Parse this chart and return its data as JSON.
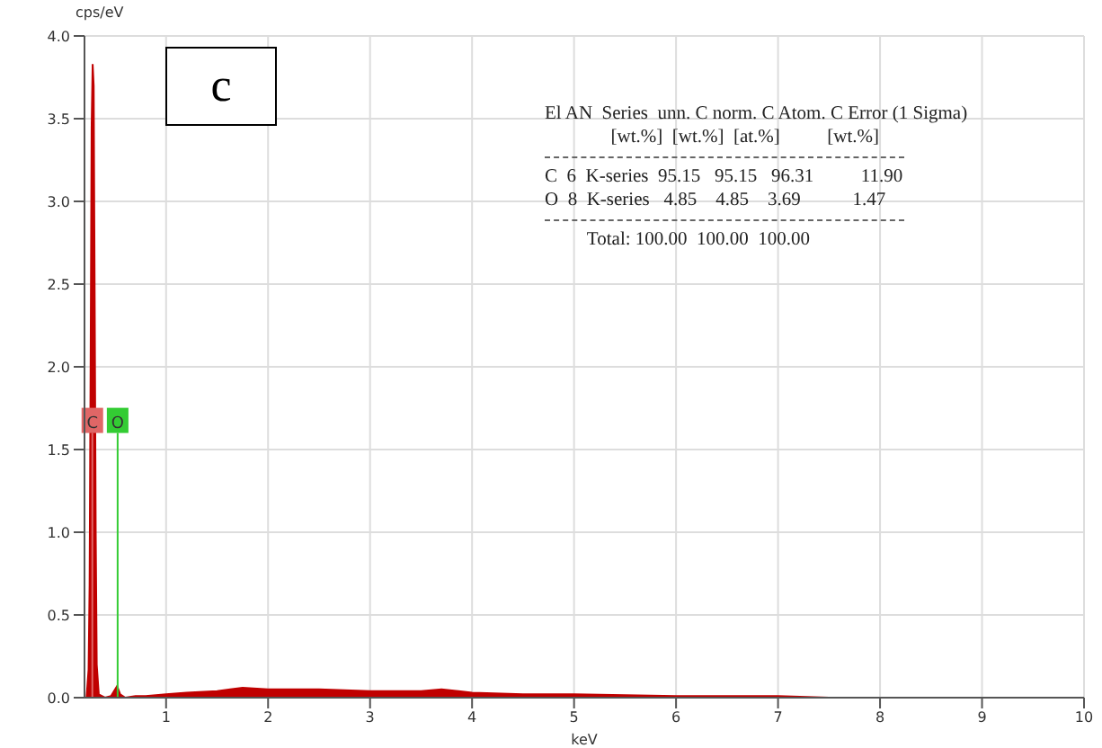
{
  "chart_data": {
    "type": "area",
    "xlabel": "keV",
    "ylabel": "cps/eV",
    "x": [
      0.22,
      0.24,
      0.25,
      0.26,
      0.27,
      0.28,
      0.29,
      0.3,
      0.31,
      0.32,
      0.34,
      0.4,
      0.46,
      0.5,
      0.52,
      0.55,
      0.6,
      0.7,
      0.8,
      1.0,
      1.2,
      1.5,
      1.75,
      2.0,
      2.25,
      2.5,
      3.0,
      3.5,
      3.7,
      4.0,
      4.5,
      5.0,
      6.0,
      7.0,
      7.5,
      10
    ],
    "series": [
      {
        "color": "#c00000",
        "values": [
          0,
          0.17,
          0.68,
          2.0,
          3.45,
          3.83,
          3.7,
          2.4,
          1.0,
          0.2,
          0.02,
          0,
          0.01,
          0.05,
          0.07,
          0.02,
          0,
          0.01,
          0.01,
          0.02,
          0.03,
          0.04,
          0.06,
          0.05,
          0.05,
          0.05,
          0.04,
          0.04,
          0.05,
          0.03,
          0.02,
          0.02,
          0.01,
          0.01,
          0,
          0
        ]
      }
    ],
    "xlim": [
      0.2,
      10
    ],
    "xticks": [
      1,
      2,
      3,
      4,
      5,
      6,
      7,
      8,
      9,
      10
    ],
    "ylim": [
      0,
      4
    ],
    "yticks": [
      {
        "value": 0,
        "label": "0.0"
      },
      {
        "value": 0.5,
        "label": "0.5"
      },
      {
        "value": 1,
        "label": "1.0"
      },
      {
        "value": 1.5,
        "label": "1.5"
      },
      {
        "value": 2,
        "label": "2.0"
      },
      {
        "value": 2.5,
        "label": "2.5"
      },
      {
        "value": 3,
        "label": "3.0"
      },
      {
        "value": 3.5,
        "label": "3.5"
      },
      {
        "value": 4,
        "label": "4.0"
      }
    ],
    "grid": true,
    "ref_lines": [
      {
        "axis": "x",
        "value": 0.277,
        "label": "C",
        "color": "#e06666"
      },
      {
        "axis": "x",
        "value": 0.525,
        "label": "O",
        "color": "#33cc33"
      }
    ],
    "annotations": [
      "c",
      "El AN  Series  unn. C norm. C Atom. C Error (1 Sigma)",
      "              [wt.%]  [wt.%]  [at.%]          [wt.%]",
      "C  6  K-series  95.15   95.15   96.31          11.90",
      "O  8  K-series   4.85    4.85    3.69           1.47",
      "         Total: 100.00  100.00  100.00"
    ]
  }
}
